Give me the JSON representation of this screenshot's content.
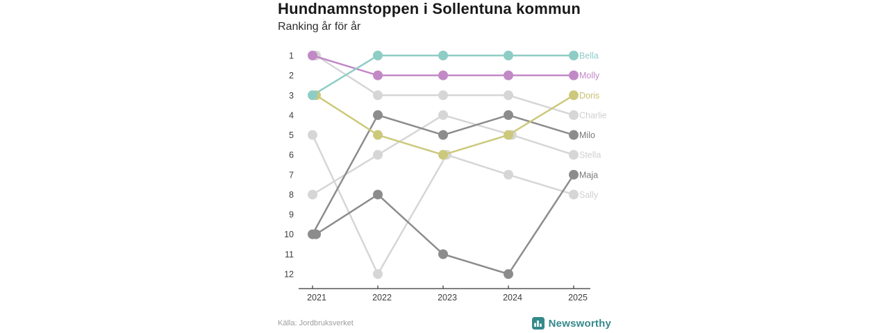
{
  "chart_data": {
    "type": "line",
    "variant": "bump-ranking",
    "title": "Hundnamnstoppen i Sollentuna kommun",
    "subtitle": "Ranking år för år",
    "categories": [
      "2021",
      "2022",
      "2023",
      "2024",
      "2025"
    ],
    "rank_ticks": [
      1,
      2,
      3,
      4,
      5,
      6,
      7,
      8,
      9,
      10,
      11,
      12
    ],
    "ylim": [
      1,
      12
    ],
    "y_inverted": true,
    "grid": false,
    "legend_position": "right-end-labels",
    "series": [
      {
        "name": "Bella",
        "color": "#8ecdc5",
        "label_color": "#8ecdc5",
        "ranks": [
          3,
          1,
          1,
          1,
          1
        ]
      },
      {
        "name": "Molly",
        "color": "#c289c7",
        "label_color": "#c289c7",
        "ranks": [
          1,
          2,
          2,
          2,
          2
        ]
      },
      {
        "name": "Doris",
        "color": "#ccc97c",
        "label_color": "#c6c26e",
        "ranks": [
          3,
          5,
          6,
          5,
          3
        ]
      },
      {
        "name": "Charlie",
        "color": "#d6d6d6",
        "label_color": "#cfcfcf",
        "ranks": [
          1,
          3,
          3,
          3,
          4
        ]
      },
      {
        "name": "Milo",
        "color": "#8c8c8c",
        "label_color": "#787878",
        "ranks": [
          10,
          4,
          5,
          4,
          5
        ]
      },
      {
        "name": "Stella",
        "color": "#d6d6d6",
        "label_color": "#cfcfcf",
        "ranks": [
          8,
          6,
          4,
          5,
          6
        ]
      },
      {
        "name": "Maja",
        "color": "#8c8c8c",
        "label_color": "#787878",
        "ranks": [
          10,
          8,
          11,
          12,
          7
        ]
      },
      {
        "name": "Sally",
        "color": "#d6d6d6",
        "label_color": "#cfcfcf",
        "ranks": [
          5,
          12,
          6,
          7,
          8
        ]
      }
    ],
    "axis_color": "#333333",
    "tick_label_color": "#3d3d3d"
  },
  "footer": {
    "source": "Källa: Jordbruksverket",
    "brand": "Newsworthy",
    "brand_color": "#35898b"
  }
}
